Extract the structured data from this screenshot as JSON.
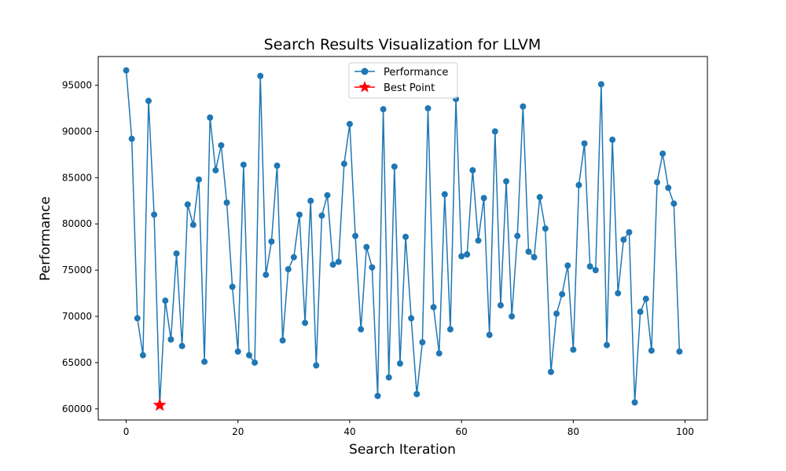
{
  "chart_data": {
    "type": "line",
    "title": "Search Results Visualization for LLVM",
    "xlabel": "Search Iteration",
    "ylabel": "Performance",
    "xlim": [
      -5,
      104
    ],
    "ylim": [
      58800,
      98100
    ],
    "xticks": [
      0,
      20,
      40,
      60,
      80,
      100
    ],
    "yticks": [
      60000,
      65000,
      70000,
      75000,
      80000,
      85000,
      90000,
      95000
    ],
    "grid": false,
    "legend_position": "top-center",
    "series": [
      {
        "name": "Performance",
        "color": "#1f77b4",
        "marker": "circle",
        "x": [
          0,
          1,
          2,
          3,
          4,
          5,
          6,
          7,
          8,
          9,
          10,
          11,
          12,
          13,
          14,
          15,
          16,
          17,
          18,
          19,
          20,
          21,
          22,
          23,
          24,
          25,
          26,
          27,
          28,
          29,
          30,
          31,
          32,
          33,
          34,
          35,
          36,
          37,
          38,
          39,
          40,
          41,
          42,
          43,
          44,
          45,
          46,
          47,
          48,
          49,
          50,
          51,
          52,
          53,
          54,
          55,
          56,
          57,
          58,
          59,
          60,
          61,
          62,
          63,
          64,
          65,
          66,
          67,
          68,
          69,
          70,
          71,
          72,
          73,
          74,
          75,
          76,
          77,
          78,
          79,
          80,
          81,
          82,
          83,
          84,
          85,
          86,
          87,
          88,
          89,
          90,
          91,
          92,
          93,
          94,
          95,
          96,
          97,
          98,
          99
        ],
        "values": [
          96600,
          89200,
          69800,
          65800,
          93300,
          81000,
          60400,
          71700,
          67500,
          76800,
          66800,
          82100,
          79900,
          84800,
          65100,
          91500,
          85800,
          88500,
          82300,
          73200,
          66200,
          86400,
          65800,
          65000,
          96000,
          74500,
          78100,
          86300,
          67400,
          75100,
          76400,
          81000,
          69300,
          82500,
          64700,
          80900,
          83100,
          75600,
          75900,
          86500,
          90800,
          78700,
          68600,
          77500,
          75300,
          61400,
          92400,
          63400,
          86200,
          64900,
          78600,
          69800,
          61600,
          67200,
          92500,
          71000,
          66000,
          83200,
          68600,
          93500,
          76500,
          76700,
          85800,
          78200,
          82800,
          68000,
          90000,
          71200,
          84600,
          70000,
          78700,
          92700,
          77000,
          76400,
          82900,
          79500,
          64000,
          70300,
          72400,
          75500,
          66400,
          84200,
          88700,
          75400,
          75000,
          95100,
          66900,
          89100,
          72500,
          78300,
          79100,
          60700,
          70500,
          71900,
          66300,
          84500,
          87600,
          83900,
          82200,
          66200
        ]
      }
    ],
    "highlight": {
      "name": "Best Point",
      "color": "#ff0000",
      "marker": "star",
      "x": 6,
      "y": 60400
    }
  }
}
